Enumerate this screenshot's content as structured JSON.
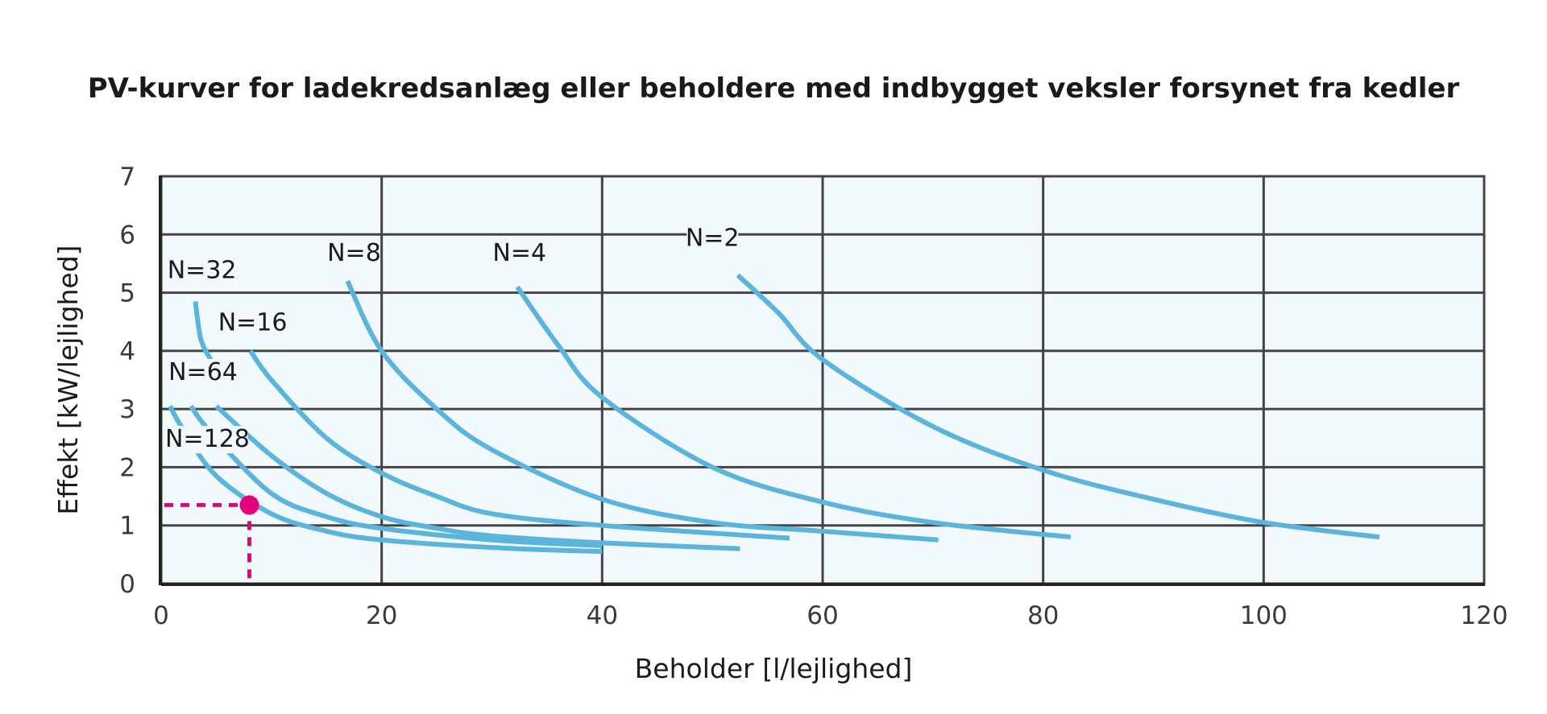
{
  "chart_data": {
    "type": "line",
    "title": "PV-kurver for ladekredsanlæg eller beholdere med indbygget veksler forsynet fra kedler",
    "xlabel": "Beholder [l/lejlighed]",
    "ylabel": "Effekt  [kW/lejlighed]",
    "xlim": [
      0,
      120
    ],
    "ylim": [
      0,
      7
    ],
    "x_ticks": [
      0,
      20,
      40,
      60,
      80,
      100,
      120
    ],
    "y_ticks": [
      0,
      1,
      2,
      3,
      4,
      5,
      6,
      7
    ],
    "x_tick_labels": [
      "0",
      "20",
      "40",
      "60",
      "80",
      "100",
      "120"
    ],
    "y_tick_labels": [
      "0",
      "1",
      "2",
      "3",
      "4",
      "5",
      "6",
      "7"
    ],
    "grid": true,
    "curve_color": "#5ab4dc",
    "marker_color": "#e5007d",
    "series": [
      {
        "name": "N=2",
        "label_at": [
          50,
          5.8
        ],
        "points": [
          [
            52.3,
            5.3
          ],
          [
            56,
            4.65
          ],
          [
            60,
            3.85
          ],
          [
            70,
            2.7
          ],
          [
            80,
            1.95
          ],
          [
            90,
            1.45
          ],
          [
            100,
            1.05
          ],
          [
            110.5,
            0.8
          ]
        ]
      },
      {
        "name": "N=4",
        "label_at": [
          32.5,
          5.55
        ],
        "points": [
          [
            32.3,
            5.1
          ],
          [
            36,
            4.1
          ],
          [
            40,
            3.2
          ],
          [
            50,
            2.0
          ],
          [
            60,
            1.4
          ],
          [
            70,
            1.05
          ],
          [
            82.5,
            0.8
          ]
        ]
      },
      {
        "name": "N=8",
        "label_at": [
          17.5,
          5.55
        ],
        "points": [
          [
            16.9,
            5.2
          ],
          [
            20,
            4.0
          ],
          [
            25,
            3.0
          ],
          [
            30,
            2.3
          ],
          [
            40,
            1.45
          ],
          [
            50,
            1.05
          ],
          [
            60,
            0.9
          ],
          [
            70.5,
            0.75
          ]
        ]
      },
      {
        "name": "N=16",
        "label_at": [
          8.3,
          4.35
        ],
        "points": [
          [
            8.1,
            4.0
          ],
          [
            10,
            3.5
          ],
          [
            15,
            2.5
          ],
          [
            20,
            1.9
          ],
          [
            25,
            1.5
          ],
          [
            30,
            1.2
          ],
          [
            40,
            1.0
          ],
          [
            57,
            0.78
          ]
        ]
      },
      {
        "name": "N=32",
        "label_at": [
          3.7,
          5.25
        ],
        "points": [
          [
            3.1,
            4.85
          ],
          [
            3.6,
            4.2
          ],
          [
            4.5,
            3.85
          ]
        ]
      },
      {
        "name": "N=64",
        "label_at": [
          3.8,
          3.5
        ],
        "points": [
          [
            5.0,
            3.05
          ],
          [
            10,
            2.2
          ],
          [
            15,
            1.55
          ],
          [
            20,
            1.15
          ],
          [
            25,
            0.95
          ],
          [
            30,
            0.82
          ],
          [
            40,
            0.7
          ],
          [
            52.5,
            0.6
          ]
        ]
      },
      {
        "name": "N=128",
        "label_at": [
          4.2,
          2.35
        ],
        "points": [
          [
            0.8,
            3.05
          ],
          [
            2,
            2.65
          ],
          [
            5,
            1.85
          ],
          [
            10,
            1.2
          ],
          [
            15,
            0.9
          ],
          [
            20,
            0.75
          ],
          [
            30,
            0.62
          ],
          [
            40,
            0.55
          ]
        ]
      },
      {
        "name": "",
        "points": [
          [
            2.7,
            3.05
          ],
          [
            4.5,
            2.6
          ],
          [
            10,
            1.55
          ],
          [
            15,
            1.15
          ],
          [
            20,
            0.95
          ],
          [
            30,
            0.75
          ],
          [
            40,
            0.65
          ]
        ]
      }
    ],
    "highlight": {
      "x": 8,
      "y": 1.35
    }
  }
}
